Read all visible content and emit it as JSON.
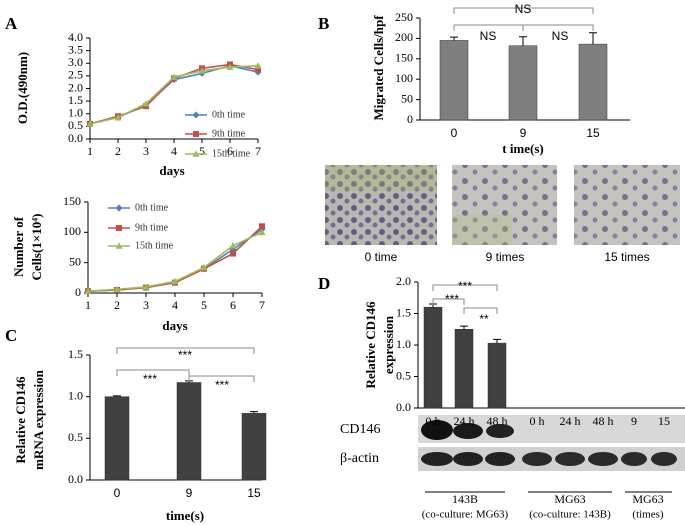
{
  "chart_data": [
    {
      "type": "line",
      "panel_label": "A",
      "ylabel": "O.D.(490nm)",
      "xlabel": "days",
      "x": [
        1,
        2,
        3,
        4,
        5,
        6,
        7
      ],
      "xlim": [
        1,
        7
      ],
      "xticks": [
        1,
        2,
        3,
        4,
        5,
        6,
        7
      ],
      "ylim": [
        0,
        4
      ],
      "yticks": [
        {
          "value": 0,
          "label": "0.0"
        },
        {
          "value": 0.5,
          "label": "0.5"
        },
        {
          "value": 1,
          "label": "1.0"
        },
        {
          "value": 1.5,
          "label": "1.5"
        },
        {
          "value": 2,
          "label": "2.0"
        },
        {
          "value": 2.5,
          "label": "2.5"
        },
        {
          "value": 3,
          "label": "3.0"
        },
        {
          "value": 3.5,
          "label": "3.5"
        },
        {
          "value": 4,
          "label": "4.0"
        }
      ],
      "series": [
        {
          "name": "0th time",
          "color": "#4f81bd",
          "marker": "diamond",
          "values": [
            0.6,
            0.85,
            1.35,
            2.35,
            2.6,
            2.9,
            2.65
          ]
        },
        {
          "name": "9th time",
          "color": "#c0504d",
          "marker": "square",
          "values": [
            0.6,
            0.9,
            1.3,
            2.4,
            2.8,
            2.95,
            2.75
          ]
        },
        {
          "name": "15th time",
          "color": "#9bbb59",
          "marker": "triangle",
          "values": [
            0.6,
            0.85,
            1.4,
            2.45,
            2.7,
            2.85,
            2.9
          ]
        }
      ]
    },
    {
      "type": "line",
      "ylabel": [
        "Number of",
        "Cells(1×10⁴)"
      ],
      "xlabel": "days",
      "x": [
        1,
        2,
        3,
        4,
        5,
        6,
        7
      ],
      "xlim": [
        1,
        7
      ],
      "xticks": [
        1,
        2,
        3,
        4,
        5,
        6,
        7
      ],
      "ylim": [
        0,
        150
      ],
      "yticks": [
        0,
        50,
        100,
        150
      ],
      "series": [
        {
          "name": "0th time",
          "color": "#4f81bd",
          "marker": "diamond",
          "values": [
            3,
            5,
            9,
            18,
            40,
            72,
            105
          ]
        },
        {
          "name": "9th time",
          "color": "#c0504d",
          "marker": "square",
          "values": [
            3,
            5,
            9,
            17,
            40,
            65,
            110
          ]
        },
        {
          "name": "15th time",
          "color": "#9bbb59",
          "marker": "triangle",
          "values": [
            3,
            6,
            10,
            19,
            42,
            78,
            100
          ]
        }
      ]
    },
    {
      "type": "bar",
      "panel_label": "B",
      "ylabel": "Migrated Cells/hpf",
      "xlabel": "t ime(s)",
      "categories": [
        "0",
        "9",
        "15"
      ],
      "values": [
        195,
        182,
        186
      ],
      "errors": [
        8,
        22,
        28
      ],
      "color": "#7f7f7f",
      "ylim": [
        0,
        250
      ],
      "yticks": [
        0,
        50,
        100,
        150,
        200,
        250
      ],
      "annotations": [
        "NS",
        "NS",
        "NS"
      ],
      "images": [
        "0 time",
        "9 times",
        "15 times"
      ]
    },
    {
      "type": "bar",
      "panel_label": "C",
      "ylabel": [
        "Relative CD146",
        "mRNA expression"
      ],
      "xlabel": "time(s)",
      "categories": [
        "0",
        "9",
        "15"
      ],
      "values": [
        1.0,
        1.17,
        0.8
      ],
      "errors": [
        0.01,
        0.02,
        0.02
      ],
      "color": "#404040",
      "ylim": [
        0,
        1.5
      ],
      "yticks": [
        {
          "value": 0,
          "label": "0.0"
        },
        {
          "value": 0.5,
          "label": "0.5"
        },
        {
          "value": 1,
          "label": "1.0"
        },
        {
          "value": 1.5,
          "label": "1.5"
        }
      ],
      "annotations": [
        "***",
        "***",
        "***"
      ]
    },
    {
      "type": "bar",
      "panel_label": "D",
      "ylabel": [
        "Relative CD146",
        "expression"
      ],
      "categories": [
        "0 h",
        "24 h",
        "48 h",
        "0 h",
        "24 h",
        "48 h",
        "9",
        "15"
      ],
      "values": [
        1.6,
        1.25,
        1.03,
        null,
        null,
        null,
        null,
        null
      ],
      "errors": [
        0.05,
        0.05,
        0.06,
        null,
        null,
        null,
        null,
        null
      ],
      "color": "#404040",
      "ylim": [
        0,
        2
      ],
      "yticks": [
        {
          "value": 0,
          "label": "0.0"
        },
        {
          "value": 0.5,
          "label": "0.5"
        },
        {
          "value": 1,
          "label": "1.0"
        },
        {
          "value": 1.5,
          "label": "1.5"
        },
        {
          "value": 2,
          "label": "2.0"
        }
      ],
      "annotations": [
        "***",
        "***",
        "**"
      ],
      "blot_labels": [
        "CD146",
        "β-actin"
      ],
      "groups": [
        {
          "name": "143B",
          "note": "(co-culture: MG63)"
        },
        {
          "name": "MG63",
          "note": "(co-culture: 143B)"
        },
        {
          "name": "MG63",
          "note": "(times)"
        }
      ]
    }
  ]
}
